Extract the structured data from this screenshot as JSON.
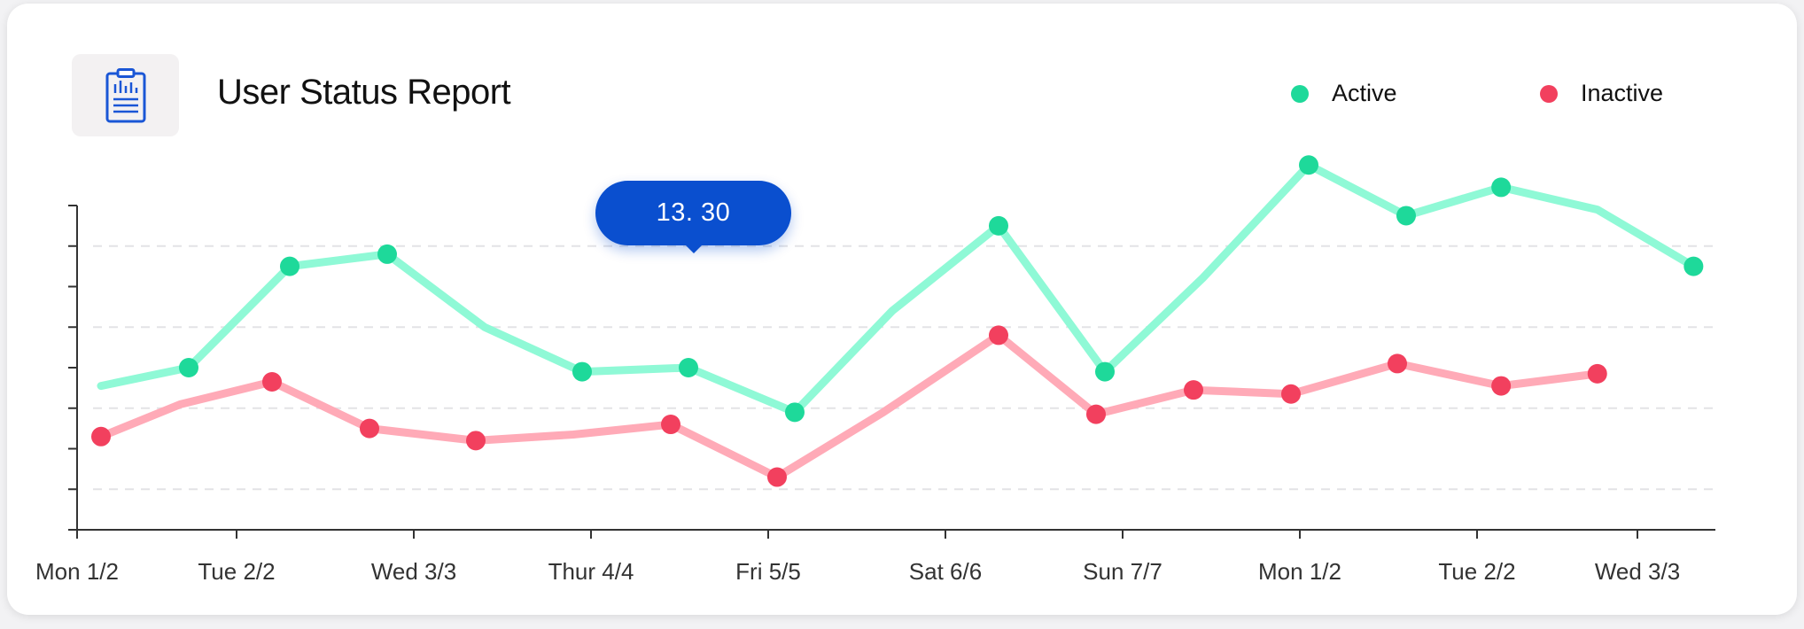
{
  "header": {
    "title": "User Status Report",
    "icon": "clipboard-report-icon"
  },
  "legend": [
    {
      "label": "Active",
      "color": "#1ed99a"
    },
    {
      "label": "Inactive",
      "color": "#f2405e"
    }
  ],
  "tooltip": {
    "value": "13. 30"
  },
  "chart_data": {
    "type": "line",
    "title": "User Status Report",
    "xlabel": "",
    "ylabel": "",
    "categories": [
      "Mon 1/2",
      "Tue 2/2",
      "Wed 3/3",
      "Thur 4/4",
      "Fri 5/5",
      "Sat 6/6",
      "Sun 7/7",
      "Mon 1/2",
      "Tue 2/2",
      "Wed 3/3"
    ],
    "ylim": [
      0,
      8
    ],
    "grid": "horizontal dashed",
    "legend_position": "top-right",
    "series": [
      {
        "name": "Active",
        "color": "#1ed99a",
        "line_color": "#8ff9d6",
        "x": [
          0.15,
          0.7,
          1.3,
          1.85,
          2.4,
          2.95,
          3.55,
          4.15,
          4.7,
          5.3,
          5.9,
          6.45,
          7.05,
          7.6,
          8.15,
          8.75,
          9.35
        ],
        "y": [
          3.55,
          4.0,
          6.5,
          6.8,
          5.0,
          3.9,
          4.0,
          2.9,
          5.4,
          7.5,
          3.9,
          6.2,
          9.0,
          7.75,
          8.45,
          7.9,
          6.5
        ],
        "markers": [
          false,
          true,
          true,
          true,
          false,
          true,
          true,
          true,
          false,
          true,
          true,
          false,
          true,
          true,
          true,
          false,
          true
        ]
      },
      {
        "name": "Inactive",
        "color": "#f2405e",
        "line_color": "#ffaab7",
        "x": [
          0.15,
          0.65,
          1.2,
          1.75,
          2.35,
          2.9,
          3.45,
          4.05,
          4.65,
          5.3,
          5.85,
          6.4,
          6.95,
          7.55,
          8.15,
          8.75
        ],
        "y": [
          2.3,
          3.1,
          3.65,
          2.5,
          2.2,
          2.35,
          2.6,
          1.3,
          2.9,
          4.8,
          2.85,
          3.45,
          3.35,
          4.1,
          3.55,
          3.85
        ],
        "markers": [
          true,
          false,
          true,
          true,
          true,
          false,
          true,
          true,
          false,
          true,
          true,
          true,
          true,
          true,
          true,
          true
        ]
      }
    ],
    "hover_x": 3.45
  }
}
